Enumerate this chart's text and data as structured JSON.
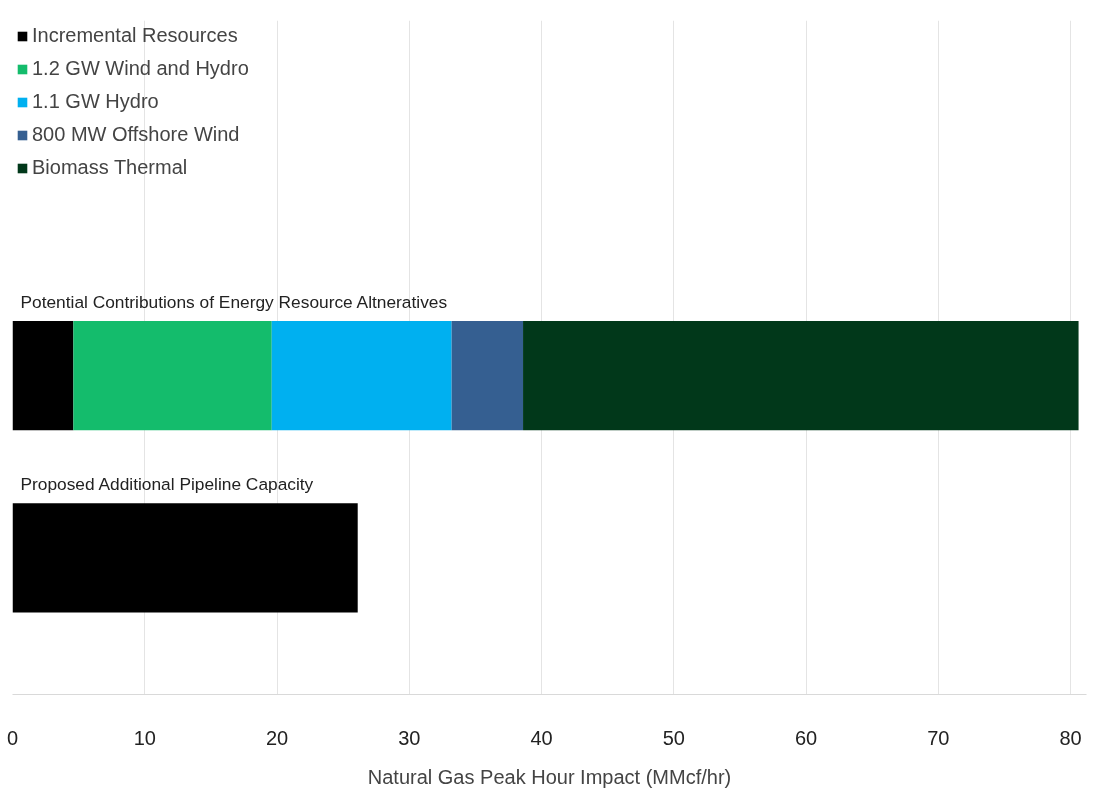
{
  "chart_data": {
    "type": "bar",
    "orientation": "horizontal",
    "stacked": true,
    "categories": [
      "Potential Contributions of Energy Resource Altneratives",
      "Proposed Additional Pipeline Capacity"
    ],
    "series": [
      {
        "name": "Incremental Resources",
        "color": "#000000",
        "values": [
          4.6,
          null
        ]
      },
      {
        "name": "1.2 GW Wind and Hydro",
        "color": "#14bc6c",
        "values": [
          15.0,
          null
        ]
      },
      {
        "name": "1.1 GW Hydro",
        "color": "#00b0f0",
        "values": [
          13.6,
          null
        ]
      },
      {
        "name": "800 MW Offshore Wind",
        "color": "#355f91",
        "values": [
          5.4,
          null
        ]
      },
      {
        "name": "Biomass Thermal",
        "color": "#01381a",
        "values": [
          42.0,
          null
        ]
      },
      {
        "color": "#000000",
        "values": [
          null,
          26.1
        ]
      }
    ],
    "xlabel": "Natural Gas Peak Hour Impact (MMcf/hr)",
    "xlim": [
      0,
      81.2
    ],
    "xticks": [
      0,
      10,
      20,
      30,
      40,
      50,
      60,
      70,
      80
    ],
    "grid": "x",
    "legend": "top left"
  }
}
